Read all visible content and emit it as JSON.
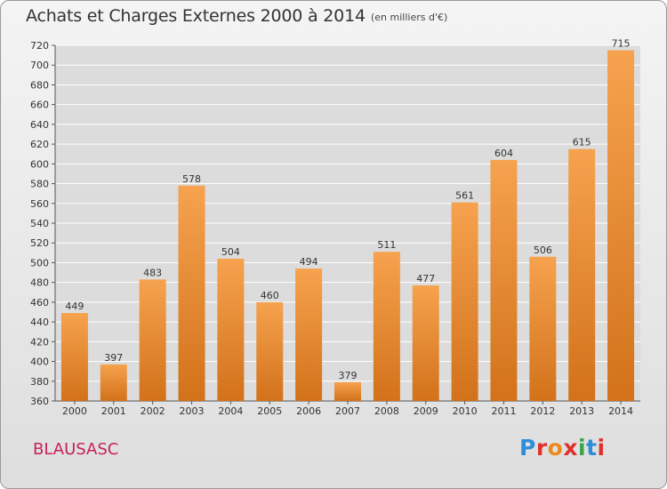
{
  "header": {
    "title": "Achats et Charges Externes 2000 à 2014",
    "subtitle": "(en milliers d'€)"
  },
  "footer": {
    "commune": "BLAUSASC",
    "logo_text": "Proxiti",
    "logo_colors": [
      "#2f8ed8",
      "#e0312b",
      "#ea8a1c",
      "#e0312b",
      "#3aa24a",
      "#2f8ed8",
      "#e0312b"
    ]
  },
  "colors": {
    "bar_top": "#f6a24e",
    "bar_bottom": "#d2721a",
    "grid": "#ffffff",
    "plot_background": "#dcdcdc"
  },
  "chart_data": {
    "type": "bar",
    "title": "Achats et Charges Externes 2000 à 2014",
    "subtitle": "(en milliers d'€)",
    "xlabel": "",
    "ylabel": "",
    "categories": [
      "2000",
      "2001",
      "2002",
      "2003",
      "2004",
      "2005",
      "2006",
      "2007",
      "2008",
      "2009",
      "2010",
      "2011",
      "2012",
      "2013",
      "2014"
    ],
    "values": [
      449,
      397,
      483,
      578,
      504,
      460,
      494,
      379,
      511,
      477,
      561,
      604,
      506,
      615,
      715
    ],
    "ylim": [
      360,
      720
    ],
    "yticks": [
      360,
      380,
      400,
      420,
      440,
      460,
      480,
      500,
      520,
      540,
      560,
      580,
      600,
      620,
      640,
      660,
      680,
      700,
      720
    ],
    "grid": true,
    "legend": "none"
  }
}
